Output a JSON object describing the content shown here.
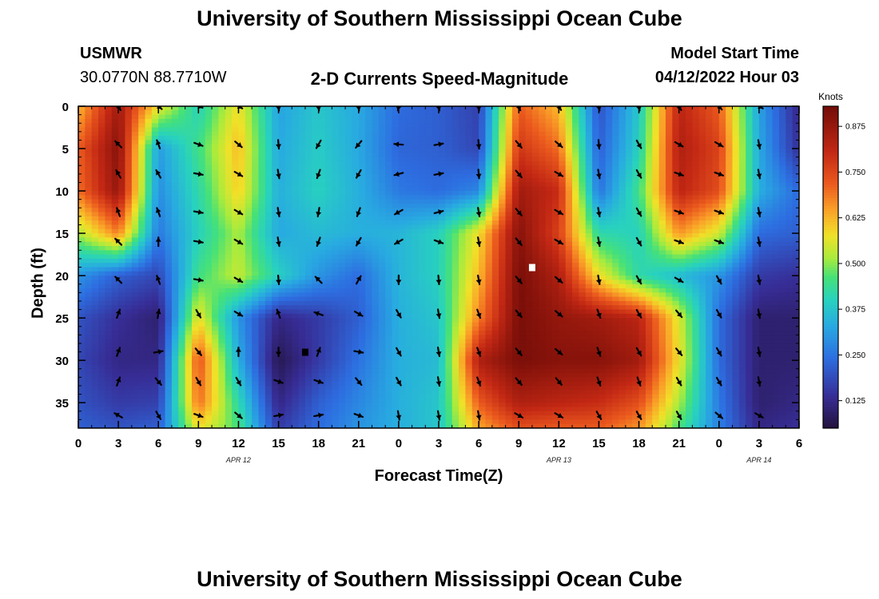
{
  "page": {
    "title": "University of Southern Mississippi Ocean Cube",
    "station_name": "USMWR",
    "station_coords": "30.0770N  88.7710W",
    "plot_subtitle": "2-D Currents Speed-Magnitude",
    "model_start_label": "Model Start Time",
    "model_start_value": "04/12/2022 Hour 03",
    "footer_title": "University of Southern Mississippi Ocean Cube"
  },
  "chart_data": {
    "type": "heatmap",
    "title": "2-D Currents Speed-Magnitude",
    "xlabel": "Forecast Time(Z)",
    "ylabel": "Depth (ft)",
    "x_unit": "hours since 04/12/2022 00Z",
    "xlim": [
      0,
      54
    ],
    "ylim": [
      0,
      38
    ],
    "x_ticks": [
      {
        "v": 0,
        "label": "0"
      },
      {
        "v": 3,
        "label": "3"
      },
      {
        "v": 6,
        "label": "6"
      },
      {
        "v": 9,
        "label": "9"
      },
      {
        "v": 12,
        "label": "12"
      },
      {
        "v": 15,
        "label": "15"
      },
      {
        "v": 18,
        "label": "18"
      },
      {
        "v": 21,
        "label": "21"
      },
      {
        "v": 24,
        "label": "0"
      },
      {
        "v": 27,
        "label": "3"
      },
      {
        "v": 30,
        "label": "6"
      },
      {
        "v": 33,
        "label": "9"
      },
      {
        "v": 36,
        "label": "12"
      },
      {
        "v": 39,
        "label": "15"
      },
      {
        "v": 42,
        "label": "18"
      },
      {
        "v": 45,
        "label": "21"
      },
      {
        "v": 48,
        "label": "0"
      },
      {
        "v": 51,
        "label": "3"
      },
      {
        "v": 54,
        "label": "6"
      }
    ],
    "y_ticks": [
      {
        "v": 0,
        "label": "0"
      },
      {
        "v": 5,
        "label": "5"
      },
      {
        "v": 10,
        "label": "10"
      },
      {
        "v": 15,
        "label": "15"
      },
      {
        "v": 20,
        "label": "20"
      },
      {
        "v": 25,
        "label": "25"
      },
      {
        "v": 30,
        "label": "30"
      },
      {
        "v": 35,
        "label": "35"
      }
    ],
    "day_labels": [
      {
        "v": 12,
        "label": "APR 12"
      },
      {
        "v": 36,
        "label": "APR 13"
      },
      {
        "v": 51,
        "label": "APR 14"
      }
    ],
    "colorbar": {
      "unit_label": "Knots",
      "min": 0.05,
      "max": 0.93,
      "ticks": [
        {
          "v": 0.125,
          "label": "0.125"
        },
        {
          "v": 0.25,
          "label": "0.250"
        },
        {
          "v": 0.375,
          "label": "0.375"
        },
        {
          "v": 0.5,
          "label": "0.500"
        },
        {
          "v": 0.625,
          "label": "0.625"
        },
        {
          "v": 0.75,
          "label": "0.750"
        },
        {
          "v": 0.875,
          "label": "0.875"
        }
      ]
    },
    "speed_field_knots": {
      "x_hours": [
        0,
        3,
        6,
        9,
        12,
        15,
        18,
        21,
        24,
        27,
        30,
        33,
        36,
        39,
        42,
        45,
        48,
        51,
        54
      ],
      "depth_ft": [
        0,
        5,
        10,
        15,
        20,
        25,
        30,
        35,
        38
      ],
      "values": [
        [
          0.62,
          0.86,
          0.58,
          0.4,
          0.58,
          0.32,
          0.38,
          0.33,
          0.24,
          0.22,
          0.17,
          0.72,
          0.62,
          0.2,
          0.38,
          0.82,
          0.72,
          0.32,
          0.12
        ],
        [
          0.72,
          0.9,
          0.31,
          0.45,
          0.62,
          0.33,
          0.39,
          0.33,
          0.23,
          0.22,
          0.18,
          0.78,
          0.7,
          0.22,
          0.4,
          0.84,
          0.76,
          0.33,
          0.14
        ],
        [
          0.7,
          0.88,
          0.29,
          0.42,
          0.6,
          0.34,
          0.4,
          0.34,
          0.26,
          0.24,
          0.28,
          0.86,
          0.8,
          0.25,
          0.45,
          0.82,
          0.74,
          0.34,
          0.24
        ],
        [
          0.52,
          0.68,
          0.26,
          0.4,
          0.52,
          0.33,
          0.36,
          0.34,
          0.35,
          0.4,
          0.58,
          0.9,
          0.76,
          0.42,
          0.4,
          0.66,
          0.55,
          0.24,
          0.22
        ],
        [
          0.3,
          0.22,
          0.18,
          0.45,
          0.54,
          0.4,
          0.3,
          0.24,
          0.35,
          0.4,
          0.62,
          0.92,
          0.84,
          0.58,
          0.42,
          0.36,
          0.3,
          0.16,
          0.14
        ],
        [
          0.2,
          0.14,
          0.1,
          0.58,
          0.3,
          0.12,
          0.16,
          0.22,
          0.34,
          0.38,
          0.68,
          0.92,
          0.88,
          0.86,
          0.82,
          0.56,
          0.24,
          0.1,
          0.1
        ],
        [
          0.18,
          0.12,
          0.12,
          0.74,
          0.34,
          0.07,
          0.16,
          0.25,
          0.34,
          0.36,
          0.84,
          0.92,
          0.9,
          0.9,
          0.86,
          0.58,
          0.24,
          0.1,
          0.1
        ],
        [
          0.2,
          0.16,
          0.17,
          0.7,
          0.42,
          0.12,
          0.22,
          0.28,
          0.34,
          0.38,
          0.72,
          0.84,
          0.82,
          0.8,
          0.74,
          0.52,
          0.26,
          0.1,
          0.12
        ],
        [
          0.22,
          0.2,
          0.22,
          0.58,
          0.46,
          0.16,
          0.24,
          0.3,
          0.34,
          0.38,
          0.64,
          0.74,
          0.72,
          0.72,
          0.66,
          0.46,
          0.27,
          0.12,
          0.14
        ]
      ]
    },
    "vector_arrows": {
      "x_hours": [
        3,
        6,
        9,
        12,
        15,
        18,
        21,
        24,
        27,
        30,
        33,
        36,
        39,
        42,
        45,
        48,
        51
      ],
      "depth_ft": [
        0,
        4.5,
        8,
        12.5,
        16,
        20.5,
        24.5,
        29,
        32.5,
        36.5
      ],
      "direction_deg_math": [
        [
          -60,
          -40,
          -20,
          -30,
          -85,
          -85,
          -85,
          -100,
          -80,
          -85,
          -70,
          -60,
          -80,
          -80,
          -60,
          -50,
          -30
        ],
        [
          135,
          110,
          -20,
          -40,
          -85,
          -120,
          -130,
          175,
          10,
          -85,
          -50,
          -40,
          -85,
          -60,
          -30,
          -30,
          -80
        ],
        [
          120,
          120,
          -10,
          -30,
          -80,
          -110,
          -120,
          -165,
          10,
          -85,
          -50,
          -30,
          -80,
          -60,
          -20,
          -20,
          -80
        ],
        [
          110,
          110,
          -10,
          -30,
          -80,
          -100,
          -110,
          -150,
          15,
          -80,
          -50,
          -30,
          -80,
          -60,
          -20,
          -20,
          -80
        ],
        [
          135,
          90,
          -10,
          -30,
          -80,
          -110,
          -120,
          -150,
          -20,
          -80,
          -50,
          -30,
          -80,
          -60,
          -20,
          -20,
          -80
        ],
        [
          135,
          110,
          -10,
          -30,
          -85,
          135,
          60,
          -90,
          -85,
          -80,
          -50,
          -40,
          -80,
          -60,
          -30,
          -60,
          -80
        ],
        [
          70,
          80,
          -60,
          -30,
          110,
          160,
          -30,
          -60,
          -80,
          -70,
          -50,
          -40,
          -70,
          -60,
          -50,
          -60,
          -80
        ],
        [
          70,
          10,
          -50,
          90,
          -90,
          70,
          -10,
          -60,
          -80,
          -70,
          -50,
          -40,
          -70,
          -60,
          -50,
          -60,
          -80
        ],
        [
          70,
          -50,
          -60,
          -60,
          -20,
          -20,
          -50,
          -60,
          -80,
          -70,
          -50,
          -50,
          -70,
          -70,
          -60,
          -60,
          -80
        ],
        [
          150,
          -60,
          -20,
          -40,
          10,
          10,
          -20,
          -80,
          -80,
          -80,
          -30,
          -30,
          -60,
          -60,
          -60,
          -40,
          -30
        ]
      ]
    },
    "markers": [
      {
        "x": 34.0,
        "depth": 19.0,
        "color": "#ffffff",
        "shape": "square"
      },
      {
        "x": 17.0,
        "depth": 29.0,
        "color": "#000000",
        "shape": "square"
      }
    ]
  }
}
